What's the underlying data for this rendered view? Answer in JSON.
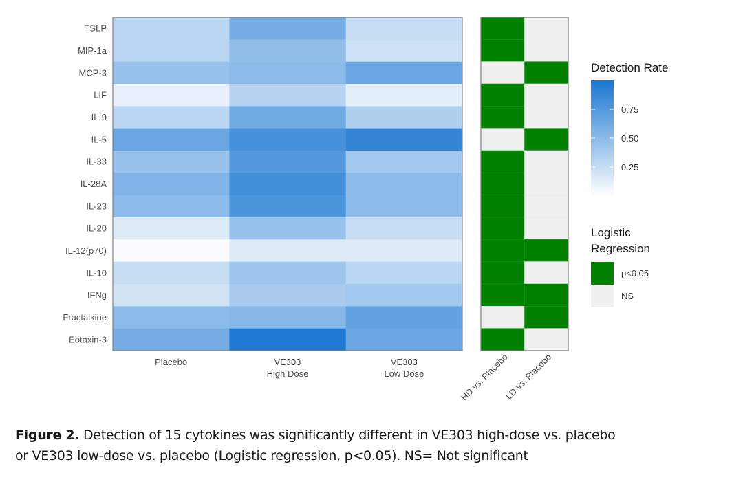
{
  "chart_data": [
    {
      "type": "heatmap",
      "title": "",
      "xlabel": "",
      "ylabel": "",
      "x_categories": [
        "Placebo",
        "VE303\nHigh Dose",
        "VE303\nLow Dose"
      ],
      "y_categories": [
        "TSLP",
        "MIP-1a",
        "MCP-3",
        "LIF",
        "IL-9",
        "IL-5",
        "IL-33",
        "IL-28A",
        "IL-23",
        "IL-20",
        "IL-12(p70)",
        "IL-10",
        "IFNg",
        "Fractalkine",
        "Eotaxin-3"
      ],
      "values": [
        [
          0.3,
          0.6,
          0.25
        ],
        [
          0.3,
          0.48,
          0.22
        ],
        [
          0.45,
          0.5,
          0.65
        ],
        [
          0.1,
          0.32,
          0.12
        ],
        [
          0.3,
          0.62,
          0.35
        ],
        [
          0.65,
          0.8,
          0.88
        ],
        [
          0.45,
          0.75,
          0.4
        ],
        [
          0.55,
          0.82,
          0.5
        ],
        [
          0.5,
          0.78,
          0.5
        ],
        [
          0.15,
          0.45,
          0.25
        ],
        [
          0.02,
          0.15,
          0.15
        ],
        [
          0.25,
          0.42,
          0.3
        ],
        [
          0.2,
          0.38,
          0.4
        ],
        [
          0.5,
          0.52,
          0.68
        ],
        [
          0.6,
          0.98,
          0.65
        ]
      ],
      "colorbar": {
        "title": "Detection Rate",
        "ticks": [
          0.25,
          0.5,
          0.75
        ],
        "tick_labels": [
          "0.25",
          "0.50",
          "0.75"
        ],
        "range": [
          0,
          1
        ],
        "low_color": "#ffffff",
        "high_color": "#1976d2"
      },
      "legend_placement": "right"
    },
    {
      "type": "heatmap",
      "title": "",
      "x_categories": [
        "HD vs. Placebo",
        "LD vs. Placebo"
      ],
      "y_categories": [
        "TSLP",
        "MIP-1a",
        "MCP-3",
        "LIF",
        "IL-9",
        "IL-5",
        "IL-33",
        "IL-28A",
        "IL-23",
        "IL-20",
        "IL-12(p70)",
        "IL-10",
        "IFNg",
        "Fractalkine",
        "Eotaxin-3"
      ],
      "values": [
        [
          "p<0.05",
          "NS"
        ],
        [
          "p<0.05",
          "NS"
        ],
        [
          "NS",
          "p<0.05"
        ],
        [
          "p<0.05",
          "NS"
        ],
        [
          "p<0.05",
          "NS"
        ],
        [
          "NS",
          "p<0.05"
        ],
        [
          "p<0.05",
          "NS"
        ],
        [
          "p<0.05",
          "NS"
        ],
        [
          "p<0.05",
          "NS"
        ],
        [
          "p<0.05",
          "NS"
        ],
        [
          "p<0.05",
          "p<0.05"
        ],
        [
          "p<0.05",
          "NS"
        ],
        [
          "p<0.05",
          "p<0.05"
        ],
        [
          "NS",
          "p<0.05"
        ],
        [
          "p<0.05",
          "NS"
        ]
      ],
      "legend": {
        "title": "Logistic Regression",
        "entries": [
          {
            "label": "p<0.05",
            "color": "#008000"
          },
          {
            "label": "NS",
            "color": "#f0f0f0"
          }
        ]
      },
      "legend_placement": "right"
    }
  ],
  "caption": {
    "label": "Figure 2.",
    "line1": " Detection of 15 cytokines was significantly different in VE303 high-dose vs. placebo",
    "line2": "or VE303 low-dose vs. placebo (Logistic regression, p<0.05).  NS= Not significant"
  }
}
